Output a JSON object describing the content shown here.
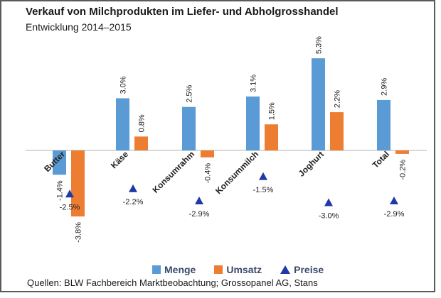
{
  "title": "Verkauf von Milchprodukten im Liefer- und Abholgrosshandel",
  "subtitle": "Entwicklung 2014–2015",
  "source": "Quellen: BLW Fachbereich Marktbeobachtung; Grossopanel AG, Stans",
  "colors": {
    "menge": "#5b9bd5",
    "umsatz": "#ed7d31",
    "preise": "#1f3aa8",
    "axis": "#b0b0b0"
  },
  "chart_data": {
    "type": "bar",
    "categories": [
      "Butter",
      "Käse",
      "Konsumrahm",
      "Konsummilch",
      "Joghurt",
      "Total"
    ],
    "series": [
      {
        "name": "Menge",
        "values": [
          -1.4,
          3.0,
          2.5,
          3.1,
          5.3,
          2.9
        ],
        "labels": [
          "-1.4%",
          "3.0%",
          "2.5%",
          "3.1%",
          "5.3%",
          "2.9%"
        ]
      },
      {
        "name": "Umsatz",
        "values": [
          -3.8,
          0.8,
          -0.4,
          1.5,
          2.2,
          -0.2
        ],
        "labels": [
          "-3.8%",
          "0.8%",
          "-0.4%",
          "1.5%",
          "2.2%",
          "-0.2%"
        ]
      },
      {
        "name": "Preise",
        "values": [
          -2.5,
          -2.2,
          -2.9,
          -1.5,
          -3.0,
          -2.9
        ],
        "labels": [
          "-2.5%",
          "-2.2%",
          "-2.9%",
          "-1.5%",
          "-3.0%",
          "-2.9%"
        ],
        "marker": "triangle"
      }
    ],
    "legend": "bottom",
    "grid": false
  }
}
